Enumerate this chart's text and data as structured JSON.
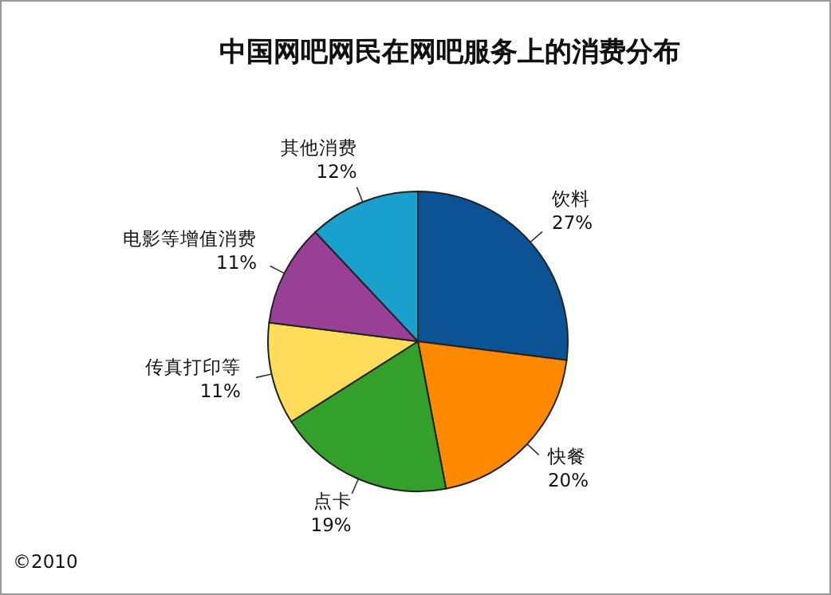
{
  "chart_data": {
    "type": "pie",
    "title": "中国网吧网民在网吧服务上的消费分布",
    "categories": [
      "饮料",
      "快餐",
      "点卡",
      "传真打印等",
      "电影等增值消费",
      "其他消费"
    ],
    "values": [
      27,
      20,
      19,
      11,
      11,
      12
    ],
    "colors": [
      "#0b5394",
      "#ff8a00",
      "#34a02c",
      "#ffdc5a",
      "#9a3f96",
      "#1aa0cc"
    ],
    "value_labels": [
      "27%",
      "20%",
      "19%",
      "11%",
      "11%",
      "12%"
    ],
    "annotations": [
      "©2010"
    ]
  }
}
